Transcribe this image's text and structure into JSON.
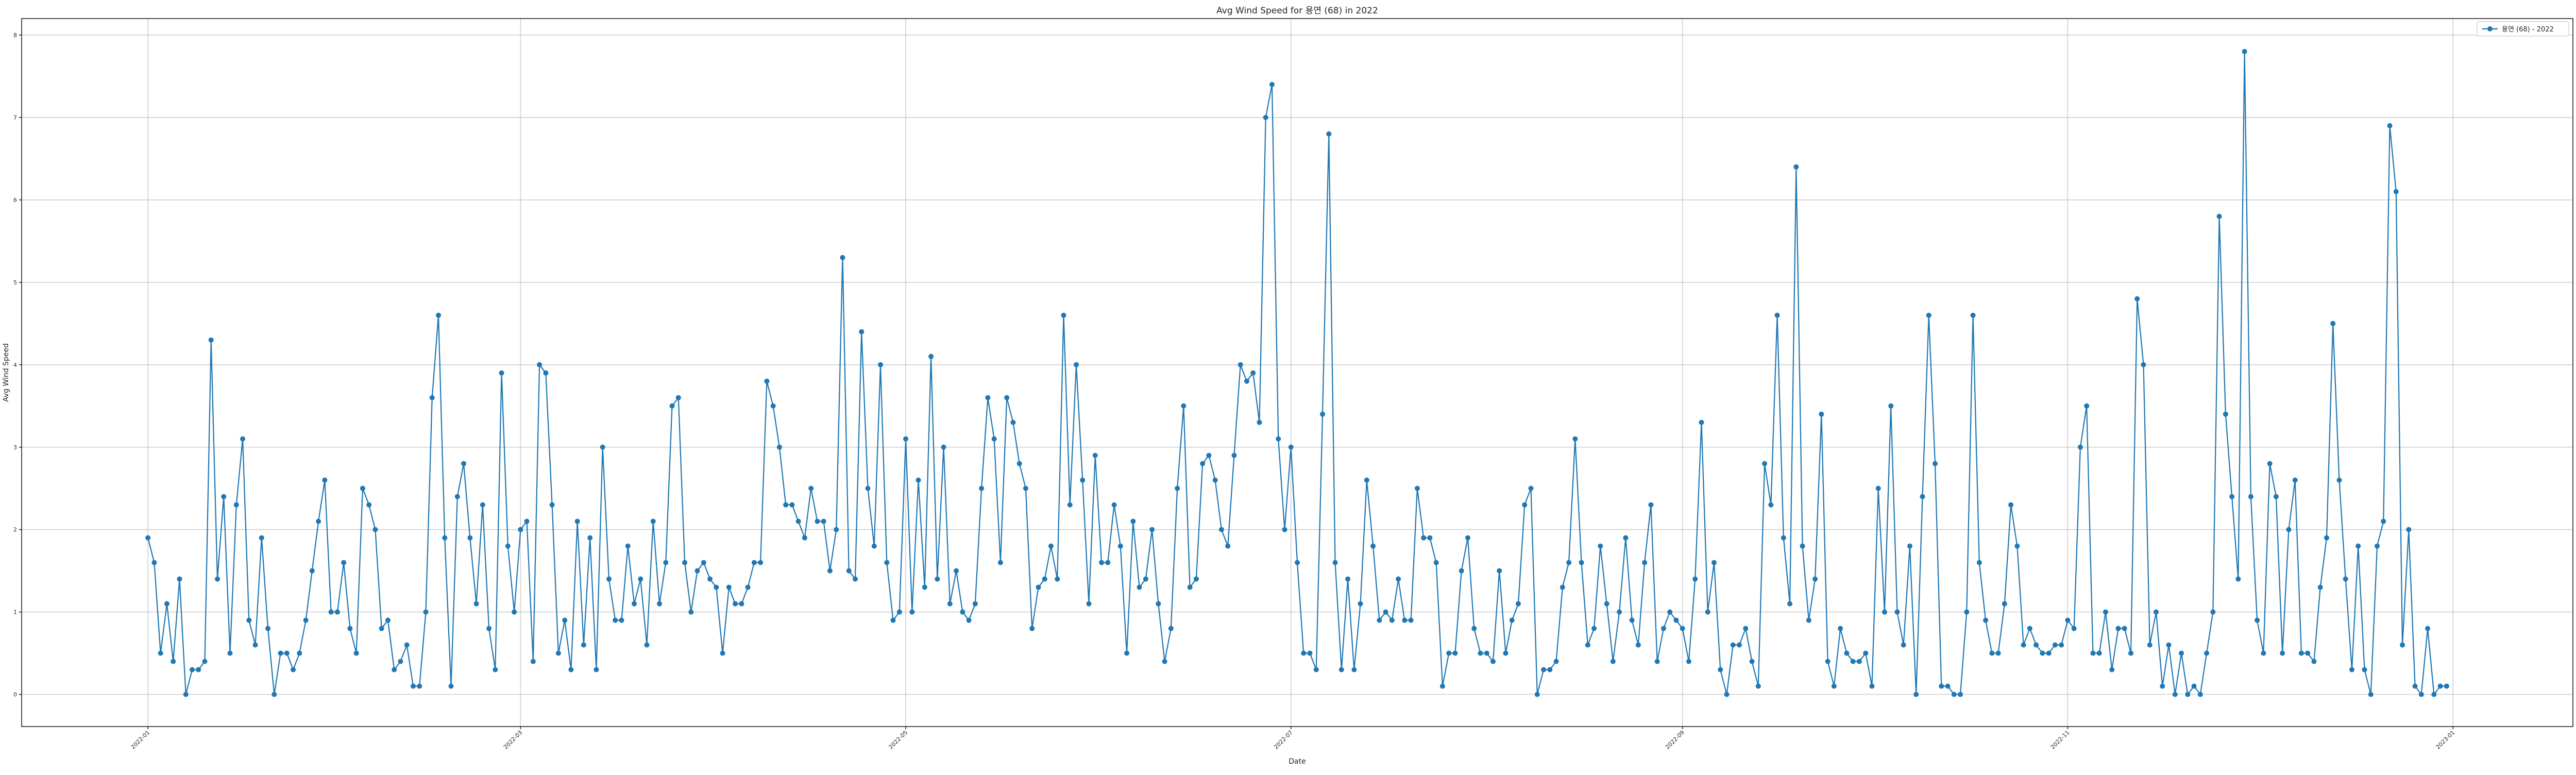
{
  "chart_data": {
    "type": "line",
    "title": "Avg Wind Speed for 용연 (68) in 2022",
    "xlabel": "Date",
    "ylabel": "Avg Wind Speed",
    "x_ticks": [
      "2022-01",
      "2022-03",
      "2022-05",
      "2022-07",
      "2022-09",
      "2022-11",
      "2023-01"
    ],
    "y_ticks": [
      "0",
      "1",
      "2",
      "3",
      "4",
      "5",
      "6",
      "7",
      "8"
    ],
    "x_range": [
      "2021-12-12",
      "2023-01-20"
    ],
    "ylim": [
      -0.39,
      8.2
    ],
    "grid": true,
    "legend_position": "top-right",
    "series": [
      {
        "name": "용연 (68) - 2022",
        "color": "#1f77b4",
        "marker": "circle",
        "start_date": "2022-01-01",
        "interval_days": 1,
        "values": [
          1.9,
          1.6,
          0.5,
          1.1,
          0.4,
          1.4,
          0.0,
          0.3,
          0.3,
          0.4,
          4.3,
          1.4,
          2.4,
          0.5,
          2.3,
          3.1,
          0.9,
          0.6,
          1.9,
          0.8,
          0.0,
          0.5,
          0.5,
          0.3,
          0.5,
          0.9,
          1.5,
          2.1,
          2.6,
          1.0,
          1.0,
          1.6,
          0.8,
          0.5,
          2.5,
          2.3,
          2.0,
          0.8,
          0.9,
          0.3,
          0.4,
          0.6,
          0.1,
          0.1,
          1.0,
          3.6,
          4.6,
          1.9,
          0.1,
          2.4,
          2.8,
          1.9,
          1.1,
          2.3,
          0.8,
          0.3,
          3.9,
          1.8,
          1.0,
          2.0,
          2.1,
          0.4,
          4.0,
          3.9,
          2.3,
          0.5,
          0.9,
          0.3,
          2.1,
          0.6,
          1.9,
          0.3,
          3.0,
          1.4,
          0.9,
          0.9,
          1.8,
          1.1,
          1.4,
          0.6,
          2.1,
          1.1,
          1.6,
          3.5,
          3.6,
          1.6,
          1.0,
          1.5,
          1.6,
          1.4,
          1.3,
          0.5,
          1.3,
          1.1,
          1.1,
          1.3,
          1.6,
          1.6,
          3.8,
          3.5,
          3.0,
          2.3,
          2.3,
          2.1,
          1.9,
          2.5,
          2.1,
          2.1,
          1.5,
          2.0,
          5.3,
          1.5,
          1.4,
          4.4,
          2.5,
          1.8,
          4.0,
          1.6,
          0.9,
          1.0,
          3.1,
          1.0,
          2.6,
          1.3,
          4.1,
          1.4,
          3.0,
          1.1,
          1.5,
          1.0,
          0.9,
          1.1,
          2.5,
          3.6,
          3.1,
          1.6,
          3.6,
          3.3,
          2.8,
          2.5,
          0.8,
          1.3,
          1.4,
          1.8,
          1.4,
          4.6,
          2.3,
          4.0,
          2.6,
          1.1,
          2.9,
          1.6,
          1.6,
          2.3,
          1.8,
          0.5,
          2.1,
          1.3,
          1.4,
          2.0,
          1.1,
          0.4,
          0.8,
          2.5,
          3.5,
          1.3,
          1.4,
          2.8,
          2.9,
          2.6,
          2.0,
          1.8,
          2.9,
          4.0,
          3.8,
          3.9,
          3.3,
          7.0,
          7.4,
          3.1,
          2.0,
          3.0,
          1.6,
          0.5,
          0.5,
          0.3,
          3.4,
          6.8,
          1.6,
          0.3,
          1.4,
          0.3,
          1.1,
          2.6,
          1.8,
          0.9,
          1.0,
          0.9,
          1.4,
          0.9,
          0.9,
          2.5,
          1.9,
          1.9,
          1.6,
          0.1,
          0.5,
          0.5,
          1.5,
          1.9,
          0.8,
          0.5,
          0.5,
          0.4,
          1.5,
          0.5,
          0.9,
          1.1,
          2.3,
          2.5,
          0.0,
          0.3,
          0.3,
          0.4,
          1.3,
          1.6,
          3.1,
          1.6,
          0.6,
          0.8,
          1.8,
          1.1,
          0.4,
          1.0,
          1.9,
          0.9,
          0.6,
          1.6,
          2.3,
          0.4,
          0.8,
          1.0,
          0.9,
          0.8,
          0.4,
          1.4,
          3.3,
          1.0,
          1.6,
          0.3,
          0.0,
          0.6,
          0.6,
          0.8,
          0.4,
          0.1,
          2.8,
          2.3,
          4.6,
          1.9,
          1.1,
          6.4,
          1.8,
          0.9,
          1.4,
          3.4,
          0.4,
          0.1,
          0.8,
          0.5,
          0.4,
          0.4,
          0.5,
          0.1,
          2.5,
          1.0,
          3.5,
          1.0,
          0.6,
          1.8,
          0.0,
          2.4,
          4.6,
          2.8,
          0.1,
          0.1,
          0.0,
          0.0,
          1.0,
          4.6,
          1.6,
          0.9,
          0.5,
          0.5,
          1.1,
          2.3,
          1.8,
          0.6,
          0.8,
          0.6,
          0.5,
          0.5,
          0.6,
          0.6,
          0.9,
          0.8,
          3.0,
          3.5,
          0.5,
          0.5,
          1.0,
          0.3,
          0.8,
          0.8,
          0.5,
          4.8,
          4.0,
          0.6,
          1.0,
          0.1,
          0.6,
          0.0,
          0.5,
          0.0,
          0.1,
          0.0,
          0.5,
          1.0,
          5.8,
          3.4,
          2.4,
          1.4,
          7.8,
          2.4,
          0.9,
          0.5,
          2.8,
          2.4,
          0.5,
          2.0,
          2.6,
          0.5,
          0.5,
          0.4,
          1.3,
          1.9,
          4.5,
          2.6,
          1.4,
          0.3,
          1.8,
          0.3,
          0.0,
          1.8,
          2.1,
          6.9,
          6.1,
          0.6,
          2.0,
          0.1,
          0.0,
          0.8,
          0.0,
          0.1,
          0.1
        ]
      }
    ]
  }
}
